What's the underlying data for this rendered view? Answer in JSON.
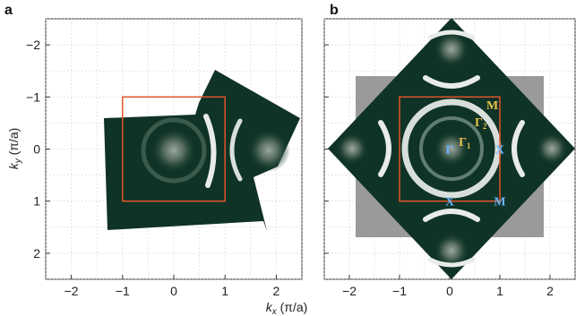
{
  "figure": {
    "panel_a_label": "a",
    "panel_b_label": "b",
    "xlabel_main": "k",
    "xlabel_sub": "x",
    "xlabel_unit": " (π/a)",
    "ylabel_main": "k",
    "ylabel_sub": "y",
    "ylabel_unit": " (π/a)"
  },
  "chart_data": [
    {
      "type": "heatmap",
      "panel": "a",
      "title": "",
      "xlabel": "k_x (π/a)",
      "ylabel": "k_y (π/a)",
      "xlim": [
        -2.5,
        2.5
      ],
      "ylim": [
        2.5,
        -2.5
      ],
      "x_ticks": [
        -2,
        -1,
        0,
        1,
        2
      ],
      "y_ticks": [
        -2,
        -1,
        0,
        1,
        2
      ],
      "x_tick_labels": [
        "−2",
        "−1",
        "0",
        "1",
        "2"
      ],
      "y_tick_labels": [
        "−2",
        "−1",
        "0",
        "1",
        "2"
      ],
      "grid": true,
      "zone_box": [
        -1,
        1,
        -1,
        1
      ],
      "zone_box_color": "#e0552a",
      "map_color": "#0f3326"
    },
    {
      "type": "heatmap",
      "panel": "b",
      "title": "",
      "xlabel": "k_x (π/a)",
      "ylabel": "",
      "xlim": [
        -2.5,
        2.5
      ],
      "ylim": [
        2.5,
        -2.5
      ],
      "x_ticks": [
        -2,
        -1,
        0,
        1,
        2
      ],
      "y_ticks": [
        -2,
        -1,
        0,
        1,
        2
      ],
      "x_tick_labels": [
        "−2",
        "−1",
        "0",
        "1",
        "2"
      ],
      "y_tick_labels": [],
      "grid": true,
      "zone_box": [
        -1,
        1,
        -1,
        1
      ],
      "zone_box_color": "#e0552a",
      "map_color": "#0f3326",
      "annotations": [
        {
          "text": "M",
          "x": 0.85,
          "y": -0.85,
          "color": "#e8c24a"
        },
        {
          "text": "Γ",
          "sub": "2",
          "x": 0.62,
          "y": -0.52,
          "color": "#e8c24a"
        },
        {
          "text": "Γ",
          "sub": "1",
          "x": 0.3,
          "y": -0.15,
          "color": "#e8c24a"
        },
        {
          "text": "X",
          "x": 1.0,
          "y": 0.0,
          "color": "#6ab4ff"
        },
        {
          "text": "X",
          "x": 0.0,
          "y": 1.0,
          "color": "#6ab4ff"
        },
        {
          "text": "M",
          "x": 1.0,
          "y": 1.0,
          "color": "#6ab4ff"
        },
        {
          "text": "Γ",
          "x": 0.0,
          "y": 0.0,
          "color": "#6ab4ff"
        }
      ]
    }
  ]
}
